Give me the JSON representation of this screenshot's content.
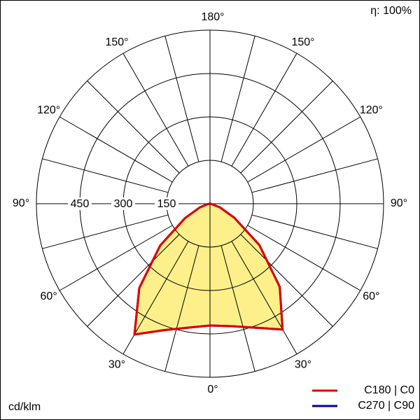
{
  "chart_data": {
    "type": "polar",
    "efficiency": "η: 100%",
    "unit": "cd/klm",
    "x": [
      -90,
      -80,
      -70,
      -60,
      -50,
      -40,
      -30,
      -20,
      -10,
      0,
      10,
      20,
      30,
      40,
      50,
      60,
      70,
      80,
      90
    ],
    "series": [
      {
        "name": "C270 | C90",
        "color": "#0000aa",
        "values": [
          0,
          8,
          38,
          100,
          225,
          380,
          522,
          465,
          435,
          421,
          430,
          456,
          502,
          375,
          223,
          97,
          36,
          5,
          0
        ]
      },
      {
        "name": "C180 | C0",
        "color": "#e00000",
        "values": [
          0,
          8,
          38,
          100,
          225,
          380,
          522,
          465,
          435,
          421,
          430,
          456,
          502,
          375,
          223,
          97,
          36,
          5,
          0
        ]
      }
    ],
    "fill": "#fdf08a",
    "rlim": [
      0,
      600
    ],
    "rticks": [
      150,
      300,
      450
    ],
    "angle_ticks": [
      {
        "value": 0,
        "label": "0°"
      },
      {
        "value": 30,
        "label": "30°"
      },
      {
        "value": 60,
        "label": "60°"
      },
      {
        "value": 90,
        "label": "90°"
      },
      {
        "value": 120,
        "label": "120°"
      },
      {
        "value": 150,
        "label": "150°"
      },
      {
        "value": 180,
        "label": "180°"
      },
      {
        "value": -30,
        "label": "30°"
      },
      {
        "value": -60,
        "label": "60°"
      },
      {
        "value": -90,
        "label": "90°"
      },
      {
        "value": -120,
        "label": "120°"
      },
      {
        "value": -150,
        "label": "150°"
      }
    ]
  }
}
